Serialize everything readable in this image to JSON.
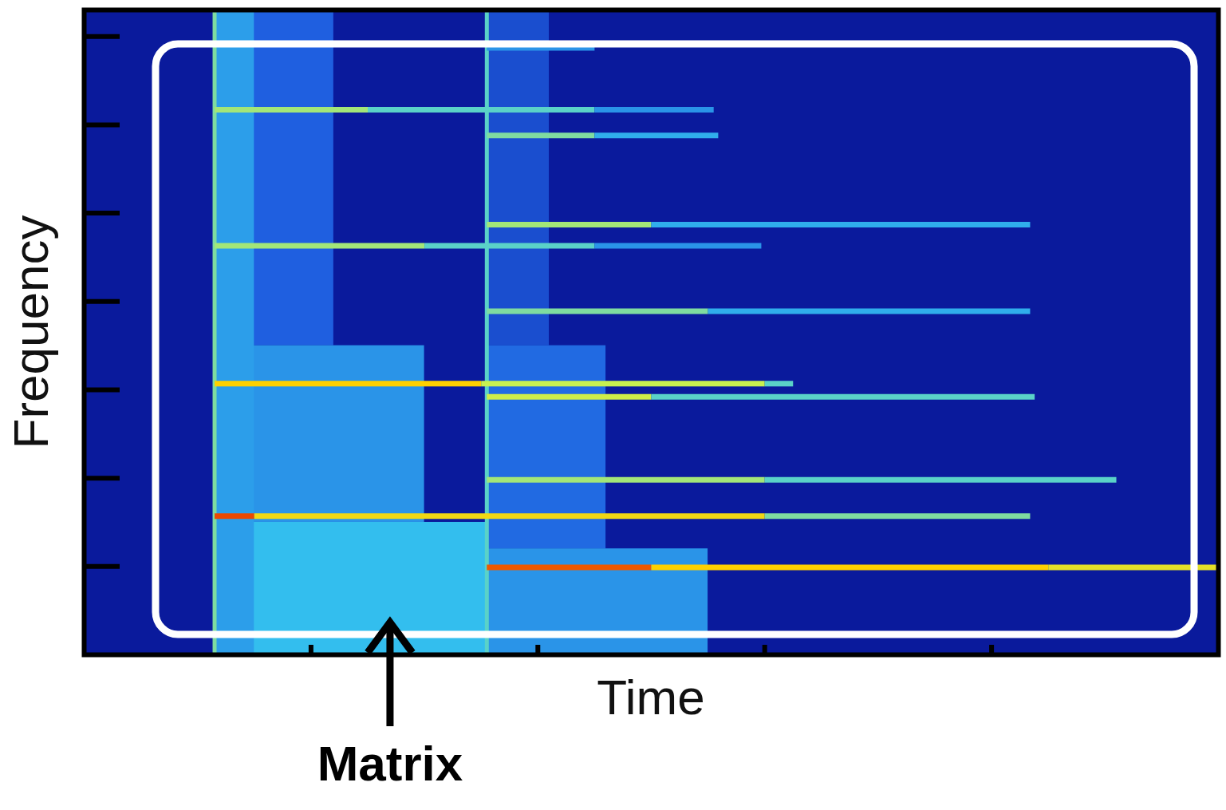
{
  "chart_data": {
    "type": "spectrogram",
    "x_label": "Time",
    "y_label": "Frequency",
    "xlim": [
      0,
      100
    ],
    "ylim": [
      0,
      7.3
    ],
    "xticks": [
      20,
      40,
      60,
      80
    ],
    "yticks": [
      1,
      2,
      3,
      4,
      5,
      6,
      7
    ],
    "tick_labels": false,
    "zlim": [
      0,
      1
    ],
    "onsets": [
      {
        "time": 11.5,
        "level": 0.5
      },
      {
        "time": 35.5,
        "level": 0.45
      }
    ],
    "noise": [
      {
        "t1": 11.5,
        "t2": 22,
        "f1": 3.5,
        "f2": 7.3,
        "level": 0.2
      },
      {
        "t1": 11.5,
        "t2": 30,
        "f1": 1.5,
        "f2": 3.5,
        "level": 0.3
      },
      {
        "t1": 11.5,
        "t2": 35.5,
        "f1": 0,
        "f2": 1.5,
        "level": 0.38
      },
      {
        "t1": 11.5,
        "t2": 15,
        "f1": 0,
        "f2": 7.3,
        "level": 0.32
      },
      {
        "t1": 35.5,
        "t2": 41,
        "f1": 3.5,
        "f2": 7.3,
        "level": 0.15
      },
      {
        "t1": 35.5,
        "t2": 46,
        "f1": 1.2,
        "f2": 3.5,
        "level": 0.22
      },
      {
        "t1": 35.5,
        "t2": 55,
        "f1": 0,
        "f2": 1.2,
        "level": 0.3
      }
    ],
    "harmonics": [
      {
        "frequency": 6.17,
        "times": [
          11.5,
          25,
          45,
          55.5
        ],
        "levels": [
          0.55,
          0.45,
          0.3,
          0.15
        ]
      },
      {
        "frequency": 4.63,
        "times": [
          11.5,
          30,
          45,
          59.7
        ],
        "levels": [
          0.55,
          0.45,
          0.3,
          0.15
        ]
      },
      {
        "frequency": 3.07,
        "times": [
          11.5,
          35,
          60,
          62.5
        ],
        "levels": [
          0.8,
          0.6,
          0.45,
          0.3
        ]
      },
      {
        "frequency": 1.57,
        "times": [
          11.5,
          15,
          60,
          83.4
        ],
        "levels": [
          0.97,
          0.75,
          0.5,
          0.25
        ]
      },
      {
        "frequency": 6.87,
        "times": [
          35.5,
          45
        ],
        "levels": [
          0.3,
          0.15
        ]
      },
      {
        "frequency": 5.88,
        "times": [
          35.5,
          45,
          55.9
        ],
        "levels": [
          0.5,
          0.35,
          0.2
        ]
      },
      {
        "frequency": 4.87,
        "times": [
          35.5,
          50,
          83.4
        ],
        "levels": [
          0.55,
          0.35,
          0.2
        ]
      },
      {
        "frequency": 3.89,
        "times": [
          35.5,
          55,
          83.4
        ],
        "levels": [
          0.5,
          0.35,
          0.2
        ]
      },
      {
        "frequency": 2.92,
        "times": [
          35.5,
          50,
          83.8
        ],
        "levels": [
          0.62,
          0.45,
          0.25
        ]
      },
      {
        "frequency": 1.98,
        "times": [
          35.5,
          60,
          91
        ],
        "levels": [
          0.55,
          0.45,
          0.2
        ]
      },
      {
        "frequency": 0.99,
        "times": [
          35.5,
          50,
          85,
          100
        ],
        "levels": [
          0.95,
          0.8,
          0.7,
          0.25
        ]
      }
    ],
    "annotations": [
      {
        "text": "Matrix",
        "x": 27,
        "y": 0.4
      }
    ]
  }
}
